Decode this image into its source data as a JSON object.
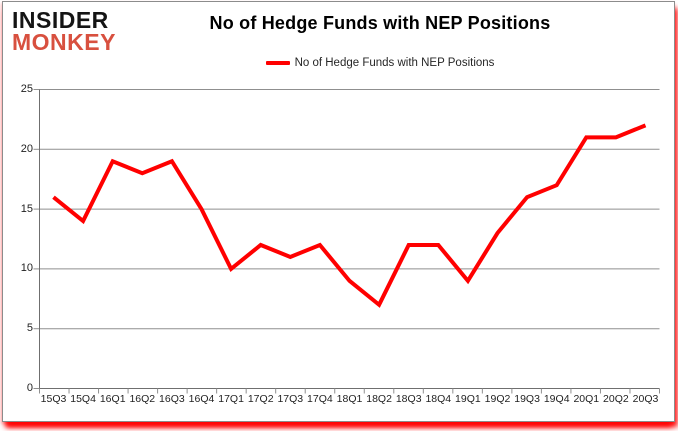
{
  "logo": {
    "line1": "INSIDER",
    "line2": "MONKEY"
  },
  "header": {
    "title": "No of Hedge Funds with NEP Positions"
  },
  "legend": {
    "label": "No of Hedge Funds with NEP Positions",
    "swatch_color": "#ff0000"
  },
  "colors": {
    "line": "#ff0000",
    "grid": "#8f8f8f",
    "axis": "#6f6f6f",
    "tick": "#8f8f8f",
    "label_text": "#1f1f1f",
    "logo_insider": "#141414",
    "logo_monkey": "#d8503f",
    "card_border": "#8c8c8c",
    "shadow_red": "#ff0000"
  },
  "chart_data": {
    "type": "line",
    "title": "No of Hedge Funds with NEP Positions",
    "categories": [
      "15Q3",
      "15Q4",
      "16Q1",
      "16Q2",
      "16Q3",
      "16Q4",
      "17Q1",
      "17Q2",
      "17Q3",
      "17Q4",
      "18Q1",
      "18Q2",
      "18Q3",
      "18Q4",
      "19Q1",
      "19Q2",
      "19Q3",
      "19Q4",
      "20Q1",
      "20Q2",
      "20Q3"
    ],
    "series": [
      {
        "name": "No of Hedge Funds with NEP Positions",
        "values": [
          16,
          14,
          19,
          18,
          19,
          15,
          10,
          12,
          11,
          12,
          9,
          7,
          12,
          12,
          9,
          13,
          16,
          17,
          21,
          21,
          22
        ]
      }
    ],
    "xlabel": "",
    "ylabel": "",
    "ylim": [
      0,
      25
    ],
    "yticks": [
      0,
      5,
      10,
      15,
      20,
      25
    ],
    "grid": true,
    "legend_position": "top-center",
    "line_width": 4
  }
}
